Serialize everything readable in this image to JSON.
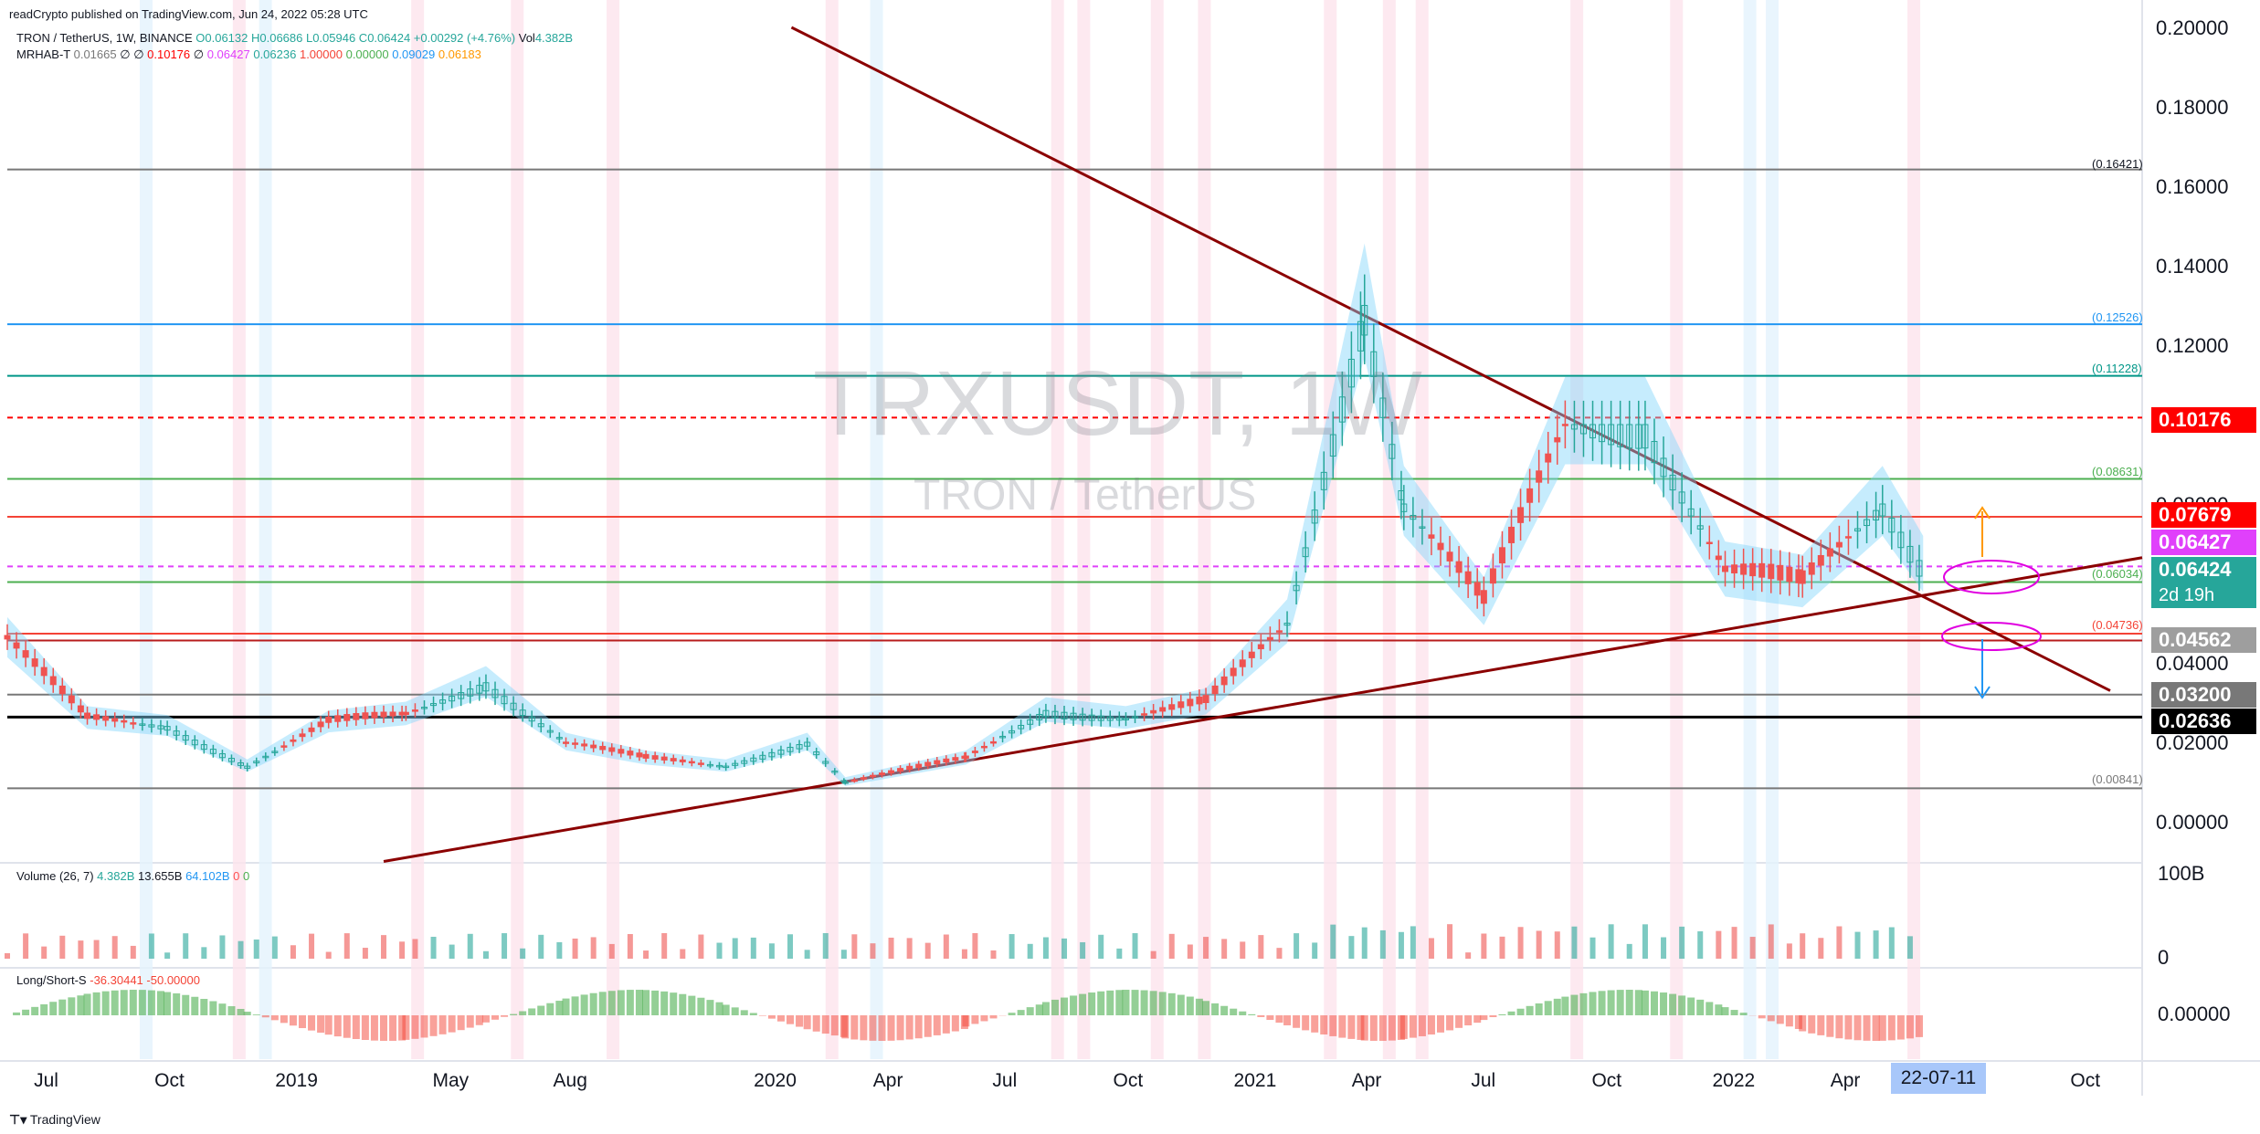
{
  "header": {
    "published": "readCrypto published on TradingView.com, Jun 24, 2022 05:28 UTC",
    "symbol_line": "TRON / TetherUS, 1W, BINANCE",
    "ohlc": "O0.06132 H0.06686 L0.05946 C0.06424 +0.00292 (+4.76%)",
    "volume_label": "Vol",
    "volume_value": "4.382B",
    "indicator_line": "MRHAB-T",
    "indicator_values": [
      "0.01665",
      "∅",
      "∅",
      "0.10176",
      "∅",
      "0.06427",
      "0.06236",
      "1.00000",
      "0.00000",
      "0.09029",
      "0.06183"
    ]
  },
  "watermark": {
    "ticker": "TRXUSDT, 1W",
    "name": "TRON / TetherUS"
  },
  "price_axis": [
    "0.20000",
    "0.18000",
    "0.16000",
    "0.14000",
    "0.12000",
    "0.10000",
    "0.08000",
    "0.06000",
    "0.04000",
    "0.02000",
    "0.00000"
  ],
  "price_tags": [
    {
      "name": "price-tag-0-10176",
      "value": "0.10176",
      "color": "#ff0000"
    },
    {
      "name": "price-tag-0-07679",
      "value": "0.07679",
      "color": "#ff0000"
    },
    {
      "name": "price-tag-0-06427",
      "value": "0.06427",
      "color": "#e040fb"
    },
    {
      "name": "price-tag-0-06424",
      "value": "0.06424",
      "color": "#26a69a"
    },
    {
      "name": "price-tag-0-04562",
      "value": "0.04562",
      "color": "#9e9e9e"
    },
    {
      "name": "price-tag-0-03200",
      "value": "0.03200",
      "color": "#787878"
    },
    {
      "name": "price-tag-0-02636",
      "value": "0.02636",
      "color": "#000000"
    }
  ],
  "countdown": "2d 19h",
  "fib_labels": [
    {
      "value": "(0.16421)",
      "color": "#787878"
    },
    {
      "value": "(0.12526)",
      "color": "#2196f3"
    },
    {
      "value": "(0.11228)",
      "color": "#009688"
    },
    {
      "value": "(0.08631)",
      "color": "#4caf50"
    },
    {
      "value": "(0.06034)",
      "color": "#4caf50"
    },
    {
      "value": "(0.04736)",
      "color": "#f44336"
    },
    {
      "value": "(0.00841)",
      "color": "#787878"
    }
  ],
  "time_axis": [
    "Jul",
    "Oct",
    "2019",
    "May",
    "Aug",
    "2020",
    "Apr",
    "Jul",
    "Oct",
    "2021",
    "Apr",
    "Jul",
    "Oct",
    "2022",
    "Apr",
    "Oct"
  ],
  "time_axis_highlight": "22-07-11",
  "volume_pane": {
    "label": "Volume (26, 7)",
    "values": [
      "4.382B",
      "13.655B",
      "64.102B",
      "0",
      "0"
    ],
    "value_colors": [
      "#26a69a",
      "#131722",
      "#2196f3",
      "#ff5252",
      "#4caf50"
    ],
    "axis_top": "100B",
    "axis_bottom": "0"
  },
  "ls_pane": {
    "label": "Long/Short-S",
    "values": [
      "-36.30441",
      "-50.00000"
    ],
    "axis": "0.00000"
  },
  "footer": "TradingView",
  "chart_data": {
    "type": "candlestick",
    "title": "TRXUSDT, 1W",
    "ylim": [
      -0.01,
      0.2
    ],
    "x_range": [
      "2018-06",
      "2022-11"
    ],
    "approx_weekly_close": [
      {
        "date": "2018-06",
        "close": 0.046
      },
      {
        "date": "2018-08",
        "close": 0.026
      },
      {
        "date": "2018-10",
        "close": 0.024
      },
      {
        "date": "2018-12",
        "close": 0.014
      },
      {
        "date": "2019-02",
        "close": 0.025
      },
      {
        "date": "2019-04",
        "close": 0.027
      },
      {
        "date": "2019-06",
        "close": 0.035
      },
      {
        "date": "2019-08",
        "close": 0.02
      },
      {
        "date": "2019-10",
        "close": 0.016
      },
      {
        "date": "2019-12",
        "close": 0.014
      },
      {
        "date": "2020-02",
        "close": 0.02
      },
      {
        "date": "2020-03",
        "close": 0.01
      },
      {
        "date": "2020-06",
        "close": 0.016
      },
      {
        "date": "2020-08",
        "close": 0.028
      },
      {
        "date": "2020-10",
        "close": 0.026
      },
      {
        "date": "2020-12",
        "close": 0.03
      },
      {
        "date": "2021-02",
        "close": 0.05
      },
      {
        "date": "2021-04",
        "close": 0.13
      },
      {
        "date": "2021-05",
        "close": 0.08
      },
      {
        "date": "2021-07",
        "close": 0.055
      },
      {
        "date": "2021-09",
        "close": 0.1
      },
      {
        "date": "2021-11",
        "close": 0.1
      },
      {
        "date": "2022-01",
        "close": 0.063
      },
      {
        "date": "2022-03",
        "close": 0.06
      },
      {
        "date": "2022-05",
        "close": 0.08
      },
      {
        "date": "2022-06",
        "close": 0.06424
      }
    ],
    "horizontal_levels": [
      0.16421,
      0.12526,
      0.11228,
      0.10176,
      0.08631,
      0.07679,
      0.06427,
      0.06034,
      0.04736,
      0.04562,
      0.032,
      0.02636,
      0.00841
    ]
  }
}
